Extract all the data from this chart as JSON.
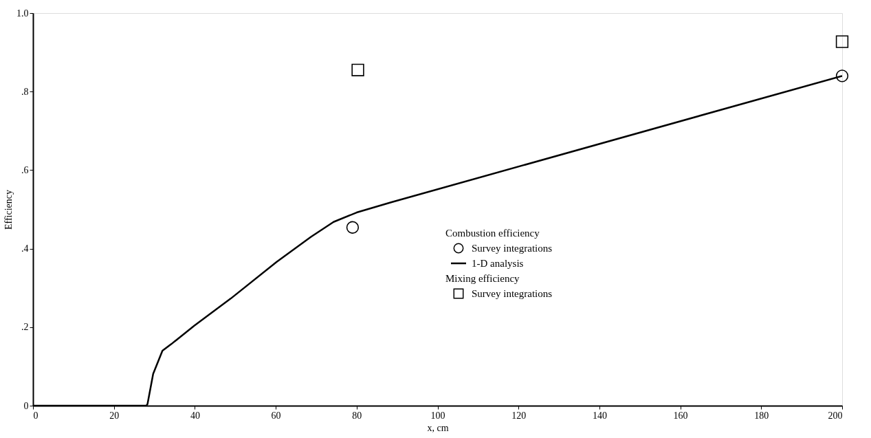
{
  "chart_data": {
    "type": "line",
    "xlabel": "x, cm",
    "ylabel": "Efficiency",
    "xlim": [
      0,
      200
    ],
    "xticks": [
      0,
      20,
      40,
      60,
      80,
      100,
      120,
      140,
      160,
      180,
      200
    ],
    "ylim": [
      0,
      1.0
    ],
    "yticks": [
      0,
      {
        "value": 0.2,
        "label": ".2"
      },
      {
        "value": 0.4,
        "label": ".4"
      },
      {
        "value": 0.6,
        "label": ".6"
      },
      {
        "value": 0.8,
        "label": ".8"
      },
      {
        "value": 1.0,
        "label": "1.0"
      }
    ],
    "grid": false,
    "legend": "right",
    "legend_title": "Combustion efficiency",
    "annotations": [
      "Mixing efficiency"
    ],
    "series": [
      {
        "name": "Survey integrations",
        "type": "scatter",
        "marker": "circle",
        "color": "#000000",
        "x": [
          79,
          200
        ],
        "values": [
          0.454,
          0.84
        ]
      },
      {
        "name": "1-D analysis",
        "line_style": "solid",
        "color": "#000000",
        "x": [
          0,
          28,
          28.3,
          29.7,
          32,
          34.2,
          39.9,
          48.9,
          60.2,
          68.7,
          74.3,
          80,
          88.5,
          200
        ],
        "values": [
          0,
          0,
          0.004,
          0.081,
          0.14,
          0.157,
          0.204,
          0.273,
          0.366,
          0.43,
          0.468,
          0.492,
          0.518,
          0.84
        ]
      },
      {
        "name": "Survey integrations",
        "type": "scatter",
        "marker": "square",
        "color": "#000000",
        "x": [
          80.3,
          200
        ],
        "values": [
          0.855,
          0.927
        ]
      }
    ]
  }
}
